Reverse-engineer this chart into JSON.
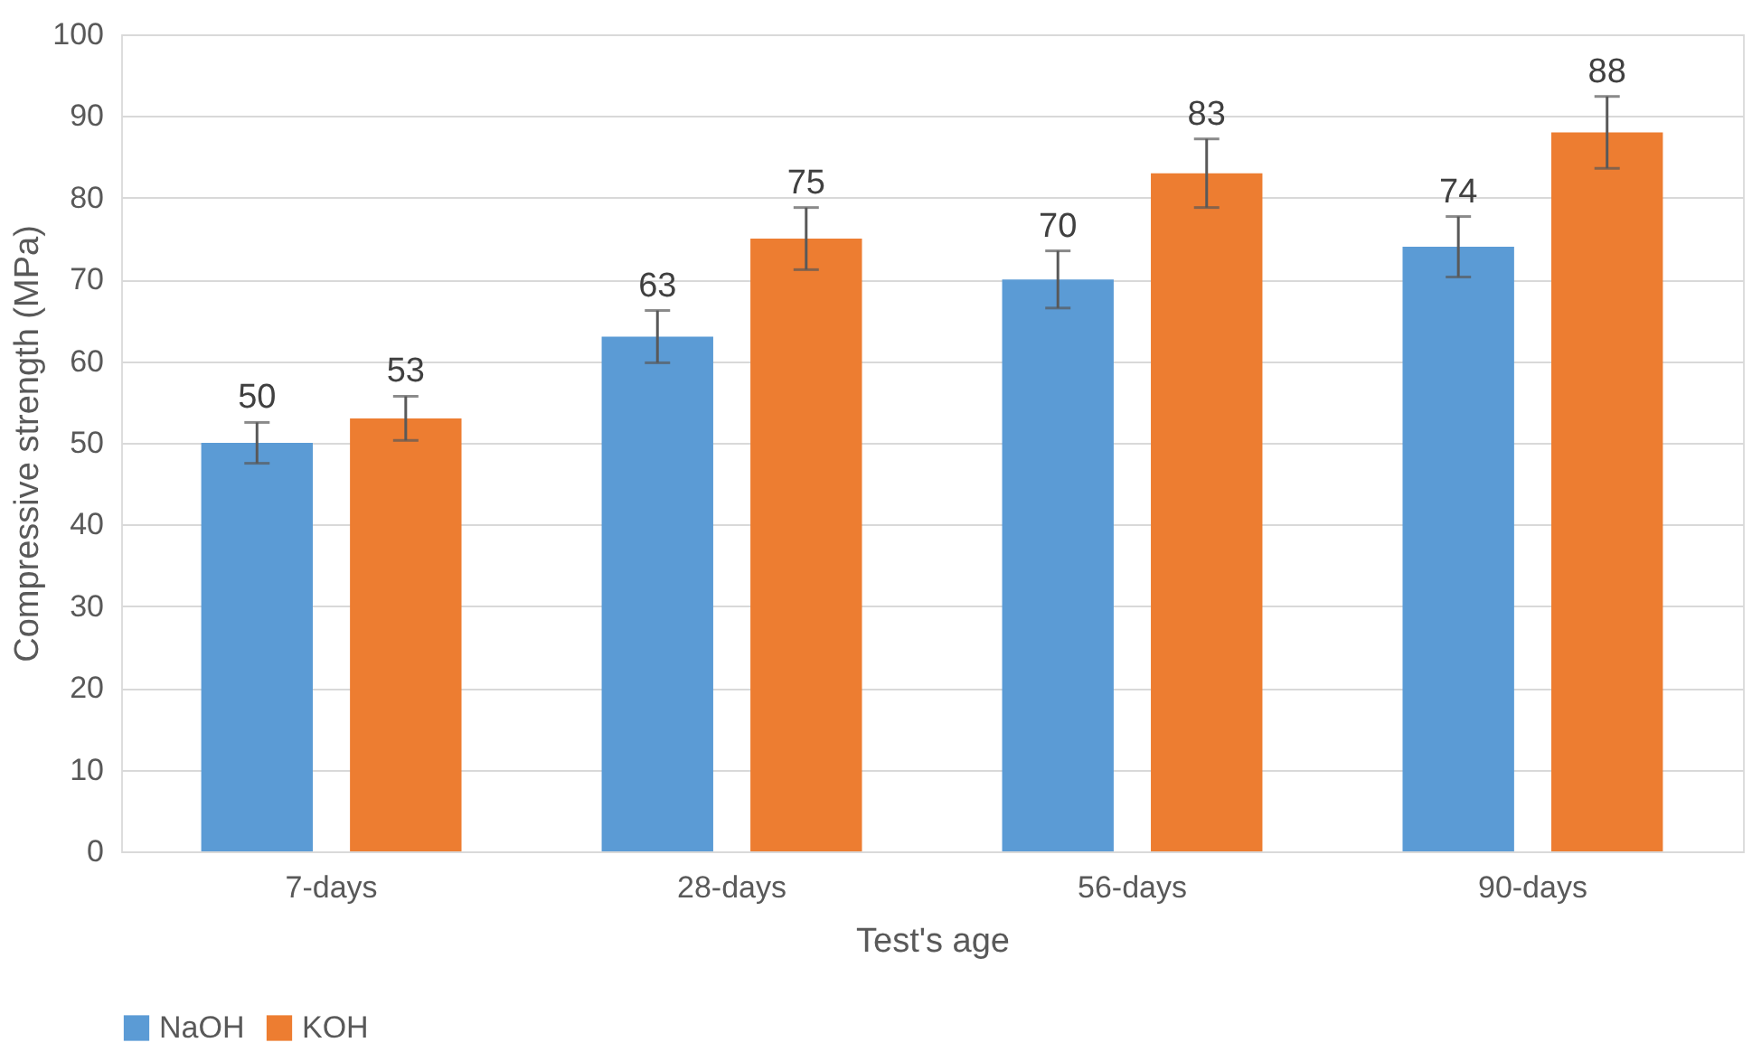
{
  "chart_data": {
    "type": "bar",
    "xlabel": "Test's age",
    "ylabel": "Compressive strength (MPa)",
    "categories": [
      "7-days",
      "28-days",
      "56-days",
      "90-days"
    ],
    "series": [
      {
        "name": "NaOH",
        "color": "#5b9bd5",
        "values": [
          50,
          63,
          70,
          74
        ],
        "errors": [
          2.5,
          3.2,
          3.5,
          3.7
        ]
      },
      {
        "name": "KOH",
        "color": "#ed7d31",
        "values": [
          53,
          75,
          83,
          88
        ],
        "errors": [
          2.7,
          3.8,
          4.2,
          4.4
        ]
      }
    ],
    "ylim": [
      0,
      100
    ],
    "yticks": [
      0,
      10,
      20,
      30,
      40,
      50,
      60,
      70,
      80,
      90,
      100
    ],
    "grid": "y",
    "legend": "bottom",
    "data_labels": true
  }
}
